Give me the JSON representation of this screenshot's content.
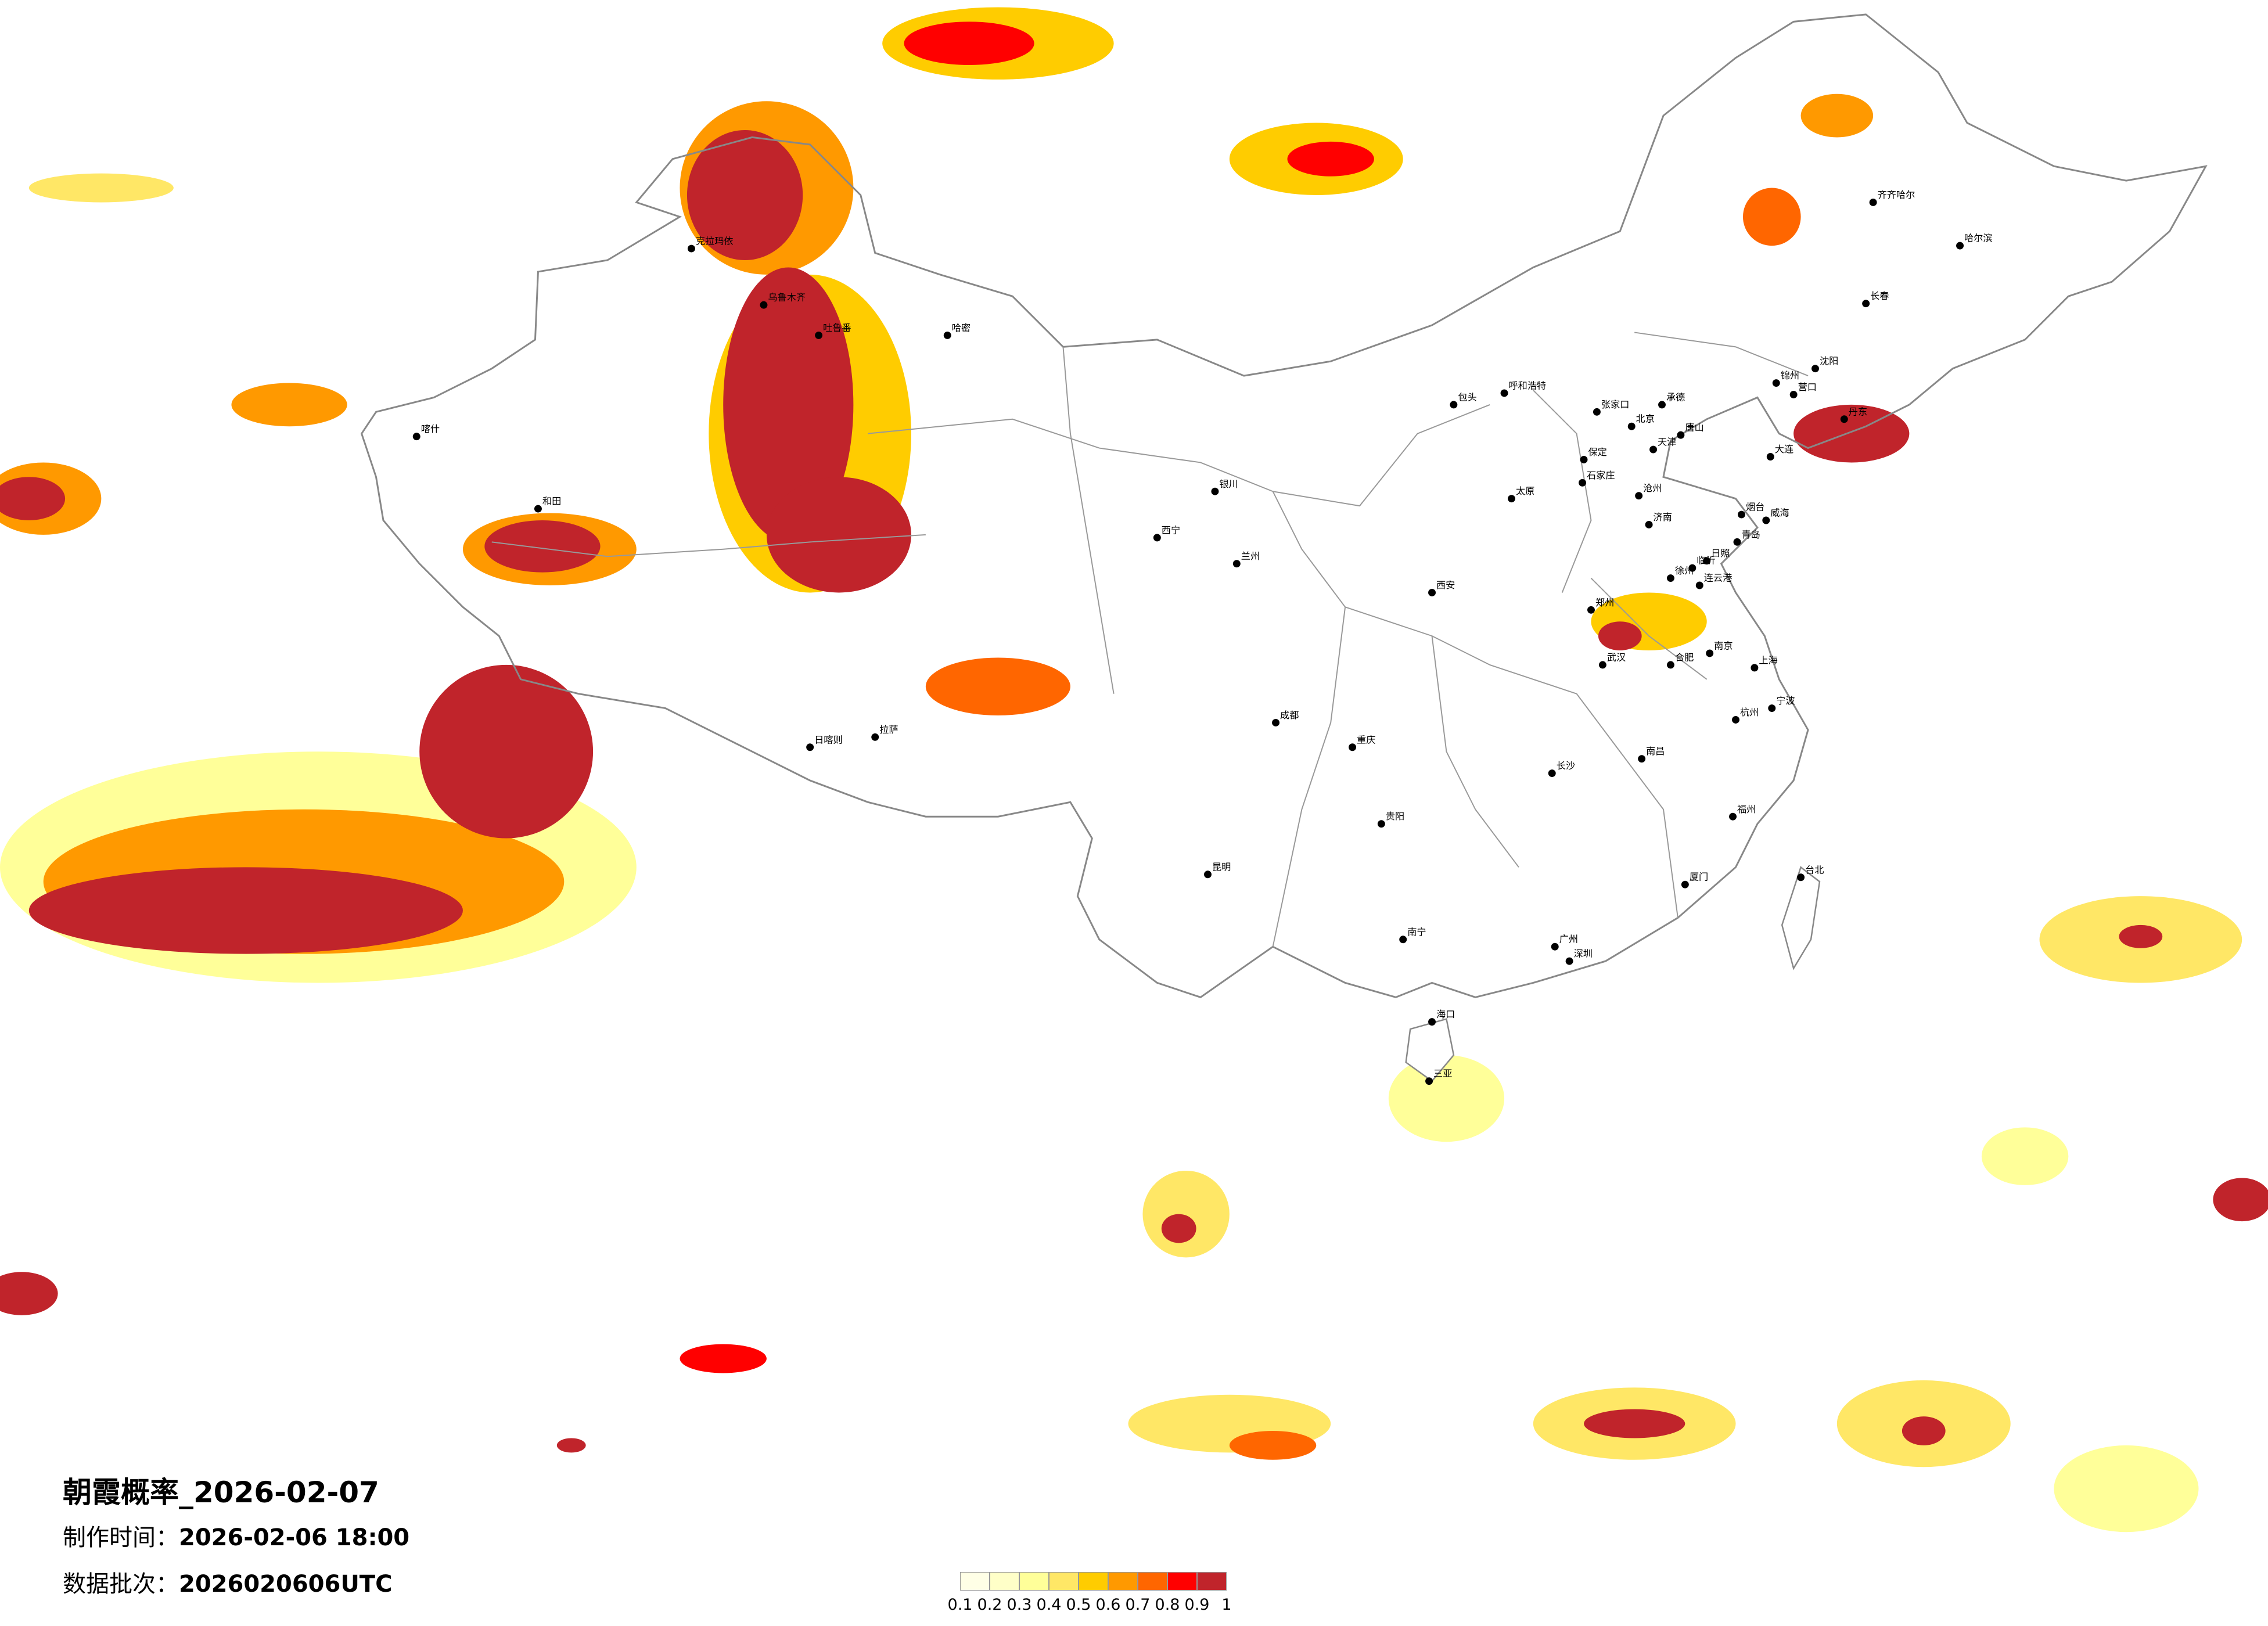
{
  "title": "朝霞概率_2026-02-07",
  "made_time_label": "制作时间：",
  "made_time": "2026-02-06 18:00",
  "batch_label": "数据批次：",
  "batch": "2026020606UTC",
  "colorbar": {
    "ticks": [
      "0.1",
      "0.2",
      "0.3",
      "0.4",
      "0.5",
      "0.6",
      "0.7",
      "0.8",
      "0.9",
      "1"
    ],
    "colors": [
      "#FFFFE6",
      "#FFFFC8",
      "#FFFF99",
      "#FFE766",
      "#FFCC00",
      "#FF9900",
      "#FF6600",
      "#FF0000",
      "#C0242B"
    ]
  },
  "cities": [
    "北京",
    "天津",
    "石家庄",
    "唐山",
    "保定",
    "沧州",
    "济南",
    "青岛",
    "烟台",
    "威海",
    "大连",
    "丹东",
    "营口",
    "锦州",
    "张家口",
    "承德",
    "沈阳",
    "长春",
    "哈尔滨",
    "齐齐哈尔",
    "呼和浩特",
    "包头",
    "太原",
    "郑州",
    "西安",
    "兰州",
    "银川",
    "西宁",
    "乌鲁木齐",
    "克拉玛依",
    "吐鲁番",
    "哈密",
    "喀什",
    "和田",
    "拉萨",
    "日喀则",
    "成都",
    "重庆",
    "贵阳",
    "昆明",
    "南宁",
    "海口",
    "三亚",
    "广州",
    "深圳",
    "福州",
    "厦门",
    "台北",
    "南昌",
    "长沙",
    "武汉",
    "合肥",
    "南京",
    "上海",
    "杭州",
    "宁波",
    "徐州",
    "连云港",
    "临沂",
    "日照"
  ]
}
